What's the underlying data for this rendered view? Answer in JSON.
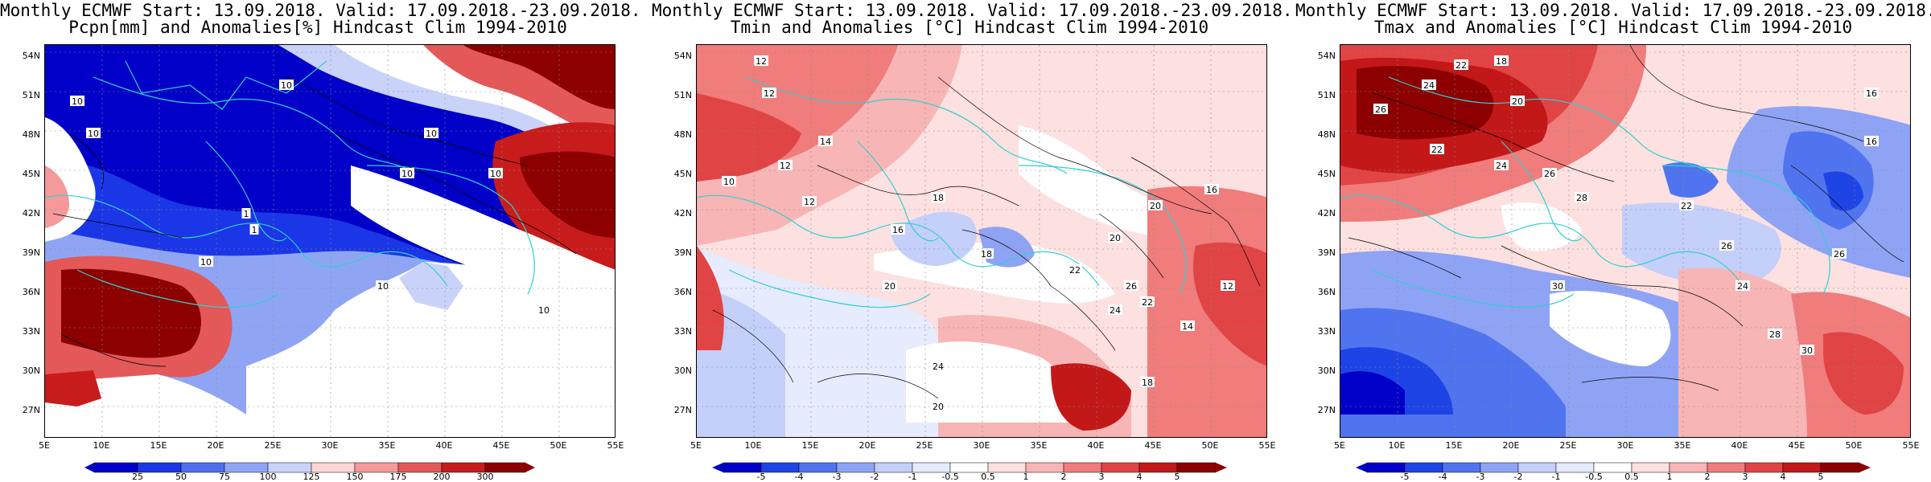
{
  "colors": {
    "precip": [
      "#0000c8",
      "#1a36e6",
      "#4f6fee",
      "#8fa5f4",
      "#c9d3fa",
      "#ffffff",
      "#fcd5d5",
      "#f49a9a",
      "#e45858",
      "#c81c1c",
      "#8c0000"
    ],
    "temp": [
      "#0000c8",
      "#1e44e6",
      "#5073f0",
      "#8fa3f5",
      "#c4cffa",
      "#e6ebfd",
      "#ffffff",
      "#fde0e0",
      "#f8b5b5",
      "#f07c7c",
      "#e14444",
      "#c31818",
      "#8c0000"
    ],
    "coast": "#30d0d0",
    "contour": "#000000"
  },
  "panels": [
    {
      "id": "precip",
      "title_line1": "Monthly ECMWF Start: 13.09.2018. Valid: 17.09.2018.-23.09.2018.",
      "title_line2": "Pcpn[mm] and Anomalies[%] Hindcast Clim 1994-2010",
      "colorbar_labels": [
        "25",
        "50",
        "75",
        "100",
        "125",
        "150",
        "175",
        "200",
        "300"
      ],
      "contour_labels": [
        "10",
        "10",
        "10",
        "10",
        "10",
        "10",
        "1",
        "1",
        "10",
        "10",
        "10"
      ]
    },
    {
      "id": "tmin",
      "title_line1": "Monthly ECMWF Start: 13.09.2018. Valid: 17.09.2018.-23.09.2018.",
      "title_line2": "Tmin and Anomalies [°C] Hindcast Clim 1994-2010",
      "colorbar_labels": [
        "-5",
        "-4",
        "-3",
        "-2",
        "-1",
        "-0.5",
        "0.5",
        "1",
        "2",
        "3",
        "4",
        "5"
      ],
      "contour_labels": [
        "12",
        "12",
        "12",
        "14",
        "10",
        "12",
        "18",
        "16",
        "18",
        "20",
        "24",
        "20",
        "26",
        "22",
        "24",
        "20",
        "18",
        "14",
        "12",
        "16",
        "20",
        "22"
      ]
    },
    {
      "id": "tmax",
      "title_line1": "Monthly ECMWF Start: 13.09.2018. Valid: 17.09.2018.-23.09.2018.",
      "title_line2": "Tmax and Anomalies [°C] Hindcast Clim 1994-2010",
      "colorbar_labels": [
        "-5",
        "-4",
        "-3",
        "-2",
        "-1",
        "-0.5",
        "0.5",
        "1",
        "2",
        "3",
        "4",
        "5"
      ],
      "contour_labels": [
        "22",
        "18",
        "16",
        "24",
        "20",
        "26",
        "22",
        "24",
        "26",
        "28",
        "30",
        "22",
        "26",
        "24",
        "28",
        "30",
        "26",
        "16"
      ]
    }
  ],
  "lat_labels": [
    "54N",
    "51N",
    "48N",
    "45N",
    "42N",
    "39N",
    "36N",
    "33N",
    "30N",
    "27N"
  ],
  "lon_labels": [
    "5E",
    "10E",
    "15E",
    "20E",
    "25E",
    "30E",
    "35E",
    "40E",
    "45E",
    "50E",
    "55E"
  ]
}
